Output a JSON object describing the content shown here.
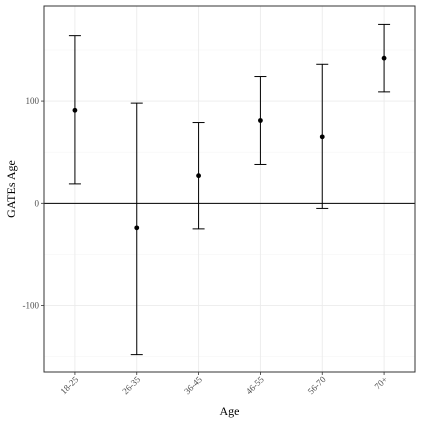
{
  "chart_data": {
    "type": "errorbar",
    "xlabel": "Age",
    "ylabel": "GATEs Age",
    "categories": [
      "18-25",
      "26-35",
      "36-45",
      "46-55",
      "56-70",
      "70+"
    ],
    "estimates": [
      91,
      -24,
      27,
      81,
      65,
      142
    ],
    "lower": [
      19,
      -148,
      -25,
      38,
      -5,
      109
    ],
    "upper": [
      164,
      98,
      79,
      124,
      136,
      175
    ],
    "yticks": [
      -100,
      0,
      100
    ],
    "ytick_labels": [
      "-100",
      "0",
      "100"
    ],
    "ylim": [
      -165,
      193
    ],
    "reference_line": 0,
    "grid": true,
    "legend": "none"
  }
}
